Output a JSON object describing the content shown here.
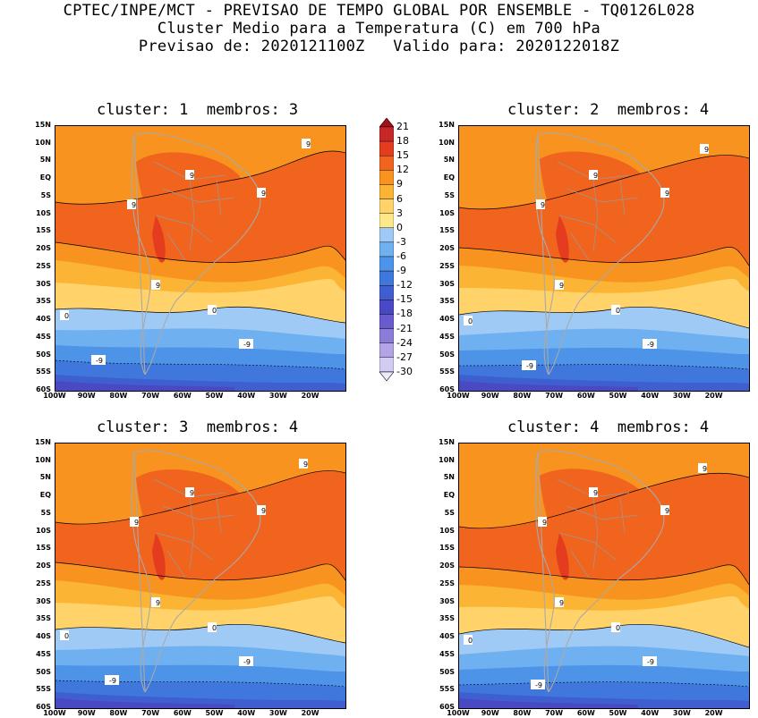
{
  "header": {
    "line1": "CPTEC/INPE/MCT - PREVISAO DE TEMPO GLOBAL POR ENSEMBLE - TQ0126L028",
    "line2": "Cluster Medio para a Temperatura (C) em 700 hPa",
    "line3": "Previsao de: 2020121100Z   Valido para: 2020122018Z"
  },
  "panels": [
    {
      "title": "cluster: 1  membros: 3"
    },
    {
      "title": "cluster: 2  membros: 4"
    },
    {
      "title": "cluster: 3  membros: 4"
    },
    {
      "title": "cluster: 4  membros: 4"
    }
  ],
  "lat_labels": [
    "15N",
    "10N",
    "5N",
    "EQ",
    "5S",
    "10S",
    "15S",
    "20S",
    "25S",
    "30S",
    "35S",
    "40S",
    "45S",
    "50S",
    "55S",
    "60S"
  ],
  "lon_labels": [
    "100W",
    "90W",
    "80W",
    "70W",
    "60W",
    "50W",
    "40W",
    "30W",
    "20W"
  ],
  "colorbar": {
    "levels": [
      "21",
      "18",
      "15",
      "12",
      "9",
      "6",
      "3",
      "0",
      "-3",
      "-6",
      "-9",
      "-12",
      "-15",
      "-18",
      "-21",
      "-24",
      "-27",
      "-30"
    ],
    "colors": [
      "#a50f15",
      "#c62828",
      "#e53b1e",
      "#f0641e",
      "#f7931e",
      "#fbb434",
      "#ffd26a",
      "#ffe88a",
      "#9fcaf5",
      "#6fb0f0",
      "#4d93e8",
      "#3f77dc",
      "#3f5fd1",
      "#4949c4",
      "#6a5bcc",
      "#8c7cd8",
      "#b2a4e6",
      "#d4cbf2",
      "#eeeaf9"
    ]
  },
  "contour_labels": {
    "nine": "9",
    "zero": "0",
    "minus_nine": "-9"
  }
}
